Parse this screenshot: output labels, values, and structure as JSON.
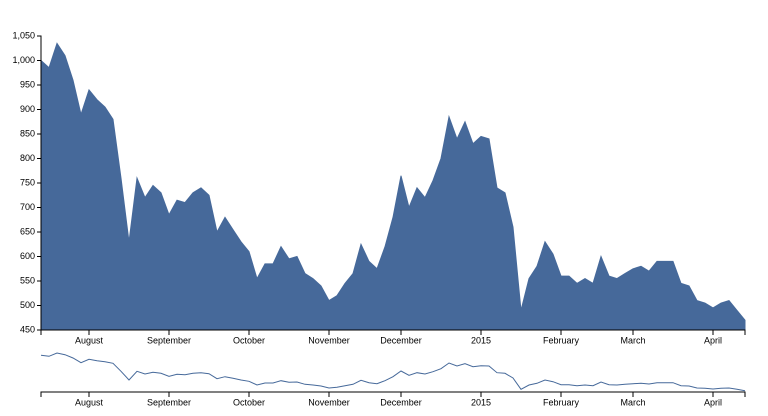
{
  "chart_data": {
    "type": "area",
    "categories": [
      null,
      null,
      null,
      null,
      null,
      null,
      "August",
      null,
      null,
      null,
      null,
      null,
      null,
      null,
      null,
      null,
      "September",
      null,
      null,
      null,
      null,
      null,
      null,
      null,
      null,
      null,
      "October",
      null,
      null,
      null,
      null,
      null,
      null,
      null,
      null,
      null,
      "November",
      null,
      null,
      null,
      null,
      null,
      null,
      null,
      null,
      "December",
      null,
      null,
      null,
      null,
      null,
      null,
      null,
      null,
      null,
      "2015",
      null,
      null,
      null,
      null,
      null,
      null,
      null,
      null,
      null,
      "February",
      null,
      null,
      null,
      null,
      null,
      null,
      null,
      null,
      "March",
      null,
      null,
      null,
      null,
      null,
      null,
      null,
      null,
      null,
      "April",
      null,
      null,
      null,
      null
    ],
    "values": [
      1000,
      985,
      1035,
      1010,
      960,
      890,
      940,
      920,
      905,
      880,
      760,
      630,
      760,
      720,
      745,
      730,
      685,
      715,
      710,
      730,
      740,
      725,
      650,
      680,
      655,
      630,
      610,
      555,
      585,
      585,
      620,
      595,
      600,
      565,
      555,
      540,
      510,
      520,
      545,
      565,
      625,
      590,
      575,
      620,
      680,
      765,
      700,
      740,
      720,
      755,
      800,
      885,
      840,
      875,
      830,
      845,
      840,
      740,
      730,
      660,
      490,
      555,
      580,
      630,
      605,
      560,
      560,
      545,
      555,
      545,
      600,
      560,
      555,
      565,
      575,
      580,
      570,
      590,
      590,
      590,
      545,
      540,
      510,
      505,
      495,
      505,
      510,
      490,
      470
    ],
    "color": "#46699a",
    "ylim": [
      450,
      1050
    ],
    "yticks": [
      450,
      500,
      550,
      600,
      650,
      700,
      750,
      800,
      850,
      900,
      950,
      {
        "value": 1000,
        "label": "1,000"
      },
      {
        "value": 1050,
        "label": "1,050"
      }
    ]
  }
}
